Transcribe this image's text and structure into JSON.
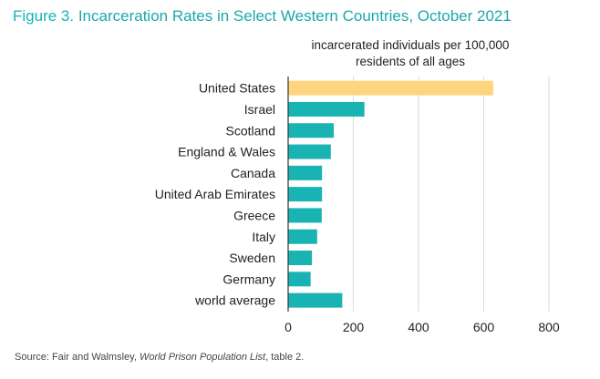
{
  "title": {
    "figure_label": "Figure 3.",
    "text": "Incarceration Rates in Select Western Countries, October 2021"
  },
  "unit_label": {
    "line1": "incarcerated individuals per 100,000",
    "line2": "residents of all ages"
  },
  "source": {
    "prefix": "Source: Fair and Walmsley, ",
    "title": "World Prison Population List",
    "suffix": ", table 2."
  },
  "colors": {
    "highlight": "#fdd57e",
    "bar": "#1ab3b3",
    "grid": "#d9d9d9",
    "title": "#1aa8ab"
  },
  "chart_data": {
    "type": "bar",
    "orientation": "horizontal",
    "categories": [
      "United States",
      "Israel",
      "Scotland",
      "England & Wales",
      "Canada",
      "United Arab Emirates",
      "Greece",
      "Italy",
      "Sweden",
      "Germany",
      "world average"
    ],
    "values": [
      629,
      234,
      140,
      131,
      104,
      104,
      103,
      89,
      73,
      69,
      166
    ],
    "highlight": [
      "United States"
    ],
    "xlim": [
      0,
      800
    ],
    "xticks": [
      0,
      200,
      400,
      600,
      800
    ],
    "title": "Incarceration Rates in Select Western Countries, October 2021",
    "xlabel": "incarcerated individuals per 100,000 residents of all ages",
    "ylabel": "",
    "grid": "vertical",
    "legend": "none"
  }
}
